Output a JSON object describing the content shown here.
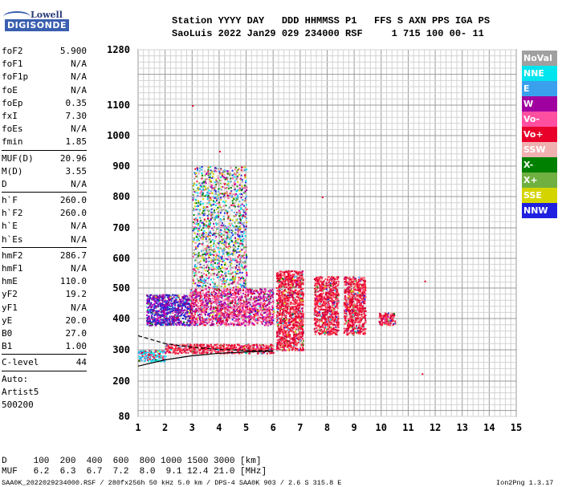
{
  "logo": {
    "line1": "Lowell",
    "line2": "DIGISONDE"
  },
  "header": {
    "line1": "Station YYYY DAY   DDD HHMMSS P1   FFS S AXN PPS IGA PS",
    "line2": "SaoLuis 2022 Jan29 029 234000 RSF     1 715 100 00- 11"
  },
  "params": {
    "group1": [
      {
        "label": "foF2",
        "value": "5.900"
      },
      {
        "label": "foF1",
        "value": "N/A"
      },
      {
        "label": "foF1p",
        "value": "N/A"
      },
      {
        "label": "foE",
        "value": "N/A"
      },
      {
        "label": "foEp",
        "value": "0.35"
      },
      {
        "label": "fxI",
        "value": "7.30"
      },
      {
        "label": "foEs",
        "value": "N/A"
      },
      {
        "label": "fmin",
        "value": "1.85"
      }
    ],
    "group2": [
      {
        "label": "MUF(D)",
        "value": "20.96"
      },
      {
        "label": "M(D)",
        "value": "3.55"
      },
      {
        "label": "D",
        "value": "N/A"
      }
    ],
    "group3": [
      {
        "label": "h`F",
        "value": "260.0"
      },
      {
        "label": "h`F2",
        "value": "260.0"
      },
      {
        "label": "h`E",
        "value": "N/A"
      },
      {
        "label": "h`Es",
        "value": "N/A"
      }
    ],
    "group4": [
      {
        "label": "hmF2",
        "value": "286.7"
      },
      {
        "label": "hmF1",
        "value": "N/A"
      },
      {
        "label": "hmE",
        "value": "110.0"
      },
      {
        "label": "yF2",
        "value": "19.2"
      },
      {
        "label": "yF1",
        "value": "N/A"
      },
      {
        "label": "yE",
        "value": "20.0"
      },
      {
        "label": "B0",
        "value": "27.0"
      },
      {
        "label": "B1",
        "value": "1.00"
      }
    ],
    "clevel": {
      "label": "C-level",
      "value": "44"
    },
    "auto": [
      "Auto:",
      "Artist5",
      "500200"
    ]
  },
  "legend": [
    {
      "label": "NoVal",
      "color": "#a0a0a0"
    },
    {
      "label": "NNE",
      "color": "#00e5ee"
    },
    {
      "label": "E",
      "color": "#3aa0ee"
    },
    {
      "label": "W",
      "color": "#a000a0"
    },
    {
      "label": "Vo-",
      "color": "#ff4fa0"
    },
    {
      "label": "Vo+",
      "color": "#e8002a"
    },
    {
      "label": "SSW",
      "color": "#f0b0b0"
    },
    {
      "label": "X-",
      "color": "#008000"
    },
    {
      "label": "X+",
      "color": "#70b040"
    },
    {
      "label": "SSE",
      "color": "#d4d400"
    },
    {
      "label": "NNW",
      "color": "#2020e0"
    }
  ],
  "footer": {
    "line1": "D     100  200  400  600  800 1000 1500 3000 [km]",
    "line2": "MUF   6.2  6.3  6.7  7.2  8.0  9.1 12.4 21.0 [MHz]",
    "file": "SAA0K_2022029234000.RSF / 280fx256h 50 kHz 5.0 km / DPS-4 SAA0K 903 / 2.6 S 315.8 E",
    "version": "Ion2Png 1.3.17"
  },
  "chart_data": {
    "type": "scatter",
    "title": "",
    "xlabel": "",
    "ylabel": "",
    "xlim": [
      1,
      15
    ],
    "ylim": [
      80,
      1280
    ],
    "y_scale": "nonlinear (ionogram virtual height)",
    "x_ticks": [
      "1",
      "2",
      "3",
      "4",
      "5",
      "6",
      "7",
      "8",
      "9",
      "10",
      "11",
      "12",
      "13",
      "14",
      "15"
    ],
    "y_ticks": [
      "80",
      "200",
      "300",
      "400",
      "500",
      "600",
      "700",
      "800",
      "900",
      "1000",
      "1100",
      "1280"
    ],
    "grid": true,
    "echo_regions": [
      {
        "x_range": [
          1.0,
          2.0
        ],
        "y_range": [
          265,
          300
        ],
        "color": "Vo+/E/NNE"
      },
      {
        "x_range": [
          1.3,
          3.0
        ],
        "y_range": [
          380,
          480
        ],
        "color": "W/NNW"
      },
      {
        "x_range": [
          2.9,
          6.0
        ],
        "y_range": [
          380,
          500
        ],
        "color": "Vo-/Vo+/W"
      },
      {
        "x_range": [
          2.0,
          6.0
        ],
        "y_range": [
          290,
          320
        ],
        "color": "Vo+"
      },
      {
        "x_range": [
          3.0,
          5.0
        ],
        "y_range": [
          500,
          900
        ],
        "color": "mixed"
      },
      {
        "x_range": [
          6.1,
          7.1
        ],
        "y_range": [
          300,
          560
        ],
        "color": "Vo+"
      },
      {
        "x_range": [
          7.5,
          8.4
        ],
        "y_range": [
          350,
          540
        ],
        "color": "Vo+/mixed"
      },
      {
        "x_range": [
          8.6,
          9.4
        ],
        "y_range": [
          350,
          540
        ],
        "color": "Vo+/mixed"
      },
      {
        "x_range": [
          9.9,
          10.5
        ],
        "y_range": [
          380,
          420
        ],
        "color": "Vo+"
      }
    ],
    "trace_lines": [
      {
        "name": "O-trace",
        "points": [
          [
            1.0,
            248
          ],
          [
            2.0,
            268
          ],
          [
            3.0,
            281
          ],
          [
            4.0,
            289
          ],
          [
            5.0,
            293
          ],
          [
            6.0,
            296
          ]
        ]
      },
      {
        "name": "X-trace",
        "points": [
          [
            1.0,
            345
          ],
          [
            2.0,
            320
          ],
          [
            3.0,
            308
          ],
          [
            4.0,
            301
          ],
          [
            5.0,
            298
          ],
          [
            6.0,
            297
          ]
        ]
      }
    ]
  }
}
